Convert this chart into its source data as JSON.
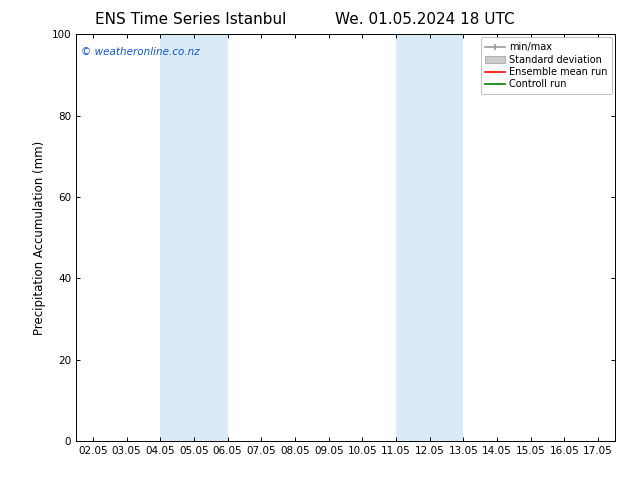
{
  "title_left": "ENS Time Series Istanbul",
  "title_right": "We. 01.05.2024 18 UTC",
  "ylabel": "Precipitation Accumulation (mm)",
  "ylim": [
    0,
    100
  ],
  "yticks": [
    0,
    20,
    40,
    60,
    80,
    100
  ],
  "xtick_labels": [
    "02.05",
    "03.05",
    "04.05",
    "05.05",
    "06.05",
    "07.05",
    "08.05",
    "09.05",
    "10.05",
    "11.05",
    "12.05",
    "13.05",
    "14.05",
    "15.05",
    "16.05",
    "17.05"
  ],
  "shaded_regions": [
    {
      "xmin": 2,
      "xmax": 4,
      "color": "#daeaf6"
    },
    {
      "xmin": 9,
      "xmax": 11,
      "color": "#daeaf6"
    }
  ],
  "watermark_text": "© weatheronline.co.nz",
  "watermark_color": "#1155cc",
  "legend_items": [
    {
      "label": "min/max",
      "color": "#aaaaaa",
      "style": "minmax"
    },
    {
      "label": "Standard deviation",
      "color": "#cccccc",
      "style": "stddev"
    },
    {
      "label": "Ensemble mean run",
      "color": "red",
      "style": "line"
    },
    {
      "label": "Controll run",
      "color": "green",
      "style": "line"
    }
  ],
  "background_color": "#ffffff",
  "plot_bg_color": "#ffffff",
  "title_fontsize": 11,
  "tick_fontsize": 7.5,
  "ylabel_fontsize": 8.5,
  "legend_fontsize": 7,
  "watermark_fontsize": 7.5
}
